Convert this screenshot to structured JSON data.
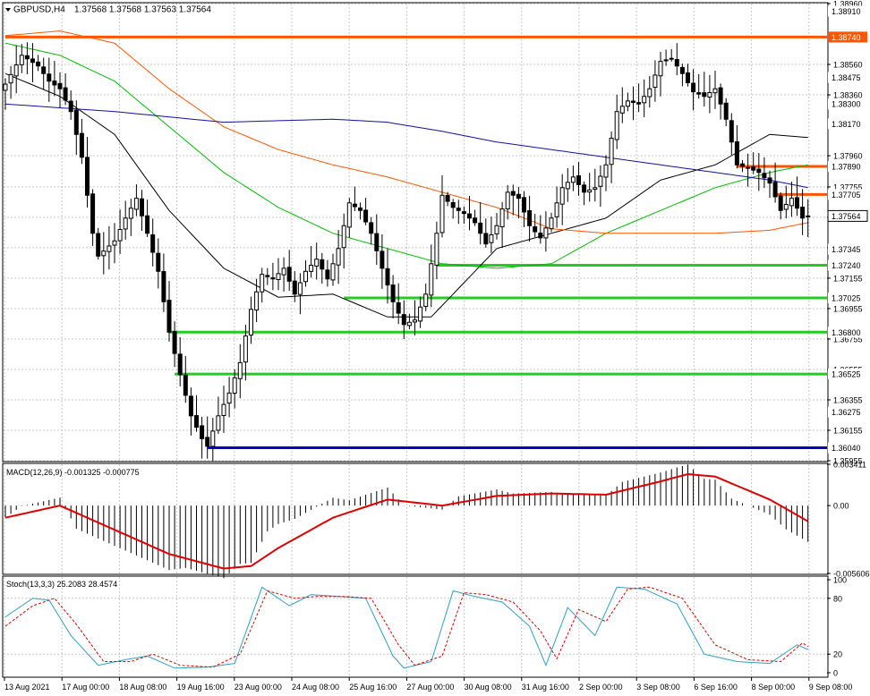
{
  "header": {
    "symbol_timeframe": "GBPUSD,H4",
    "ohlc": "1.37568 1.37568 1.37563 1.37564"
  },
  "colors": {
    "bull": "#ffffff",
    "bear": "#000000",
    "sma_black": "#000000",
    "sma_green": "#00bb00",
    "sma_orange": "#ff5500",
    "sma_blue": "#1010a0",
    "level_red": "#ff5500",
    "level_green": "#22cc22",
    "level_blue": "#0000cc",
    "macd_signal": "#dd0000",
    "stoch_main": "#30a0c0",
    "stoch_signal": "#dd0000"
  },
  "price_axis": {
    "ticks": [
      "1.38960",
      "1.38560",
      "1.38360",
      "1.37960",
      "1.37755",
      "1.37555",
      "1.37355",
      "1.37155",
      "1.36955",
      "1.36755",
      "1.36555",
      "1.36355",
      "1.36155",
      "1.35955"
    ]
  },
  "price_labels": [
    {
      "text": "1.38910",
      "kind": "line",
      "value": 1.3891
    },
    {
      "text": "1.38740",
      "kind": "red",
      "value": 1.3874
    },
    {
      "text": "1.38475",
      "kind": "line",
      "value": 1.38475
    },
    {
      "text": "1.38300",
      "kind": "line",
      "value": 1.383
    },
    {
      "text": "1.38170",
      "kind": "line",
      "value": 1.3817
    },
    {
      "text": "1.37890",
      "kind": "line",
      "value": 1.3789
    },
    {
      "text": "1.37705",
      "kind": "line",
      "value": 1.37705
    },
    {
      "text": "1.37564",
      "kind": "current",
      "value": 1.37564
    },
    {
      "text": "1.37345",
      "kind": "line",
      "value": 1.37345
    },
    {
      "text": "1.37240",
      "kind": "line",
      "value": 1.3724
    },
    {
      "text": "1.37025",
      "kind": "line",
      "value": 1.37025
    },
    {
      "text": "1.36800",
      "kind": "line",
      "value": 1.368
    },
    {
      "text": "1.36525",
      "kind": "line",
      "value": 1.36525
    },
    {
      "text": "1.36275",
      "kind": "line",
      "value": 1.36275
    },
    {
      "text": "1.36040",
      "kind": "line",
      "value": 1.3604
    }
  ],
  "levels": [
    {
      "price": 1.3874,
      "color": "#ff5500",
      "start_bar": 0
    },
    {
      "price": 1.3789,
      "color": "#ff5500",
      "start_bar": 134
    },
    {
      "price": 1.37705,
      "color": "#ff5500",
      "start_bar": 141
    },
    {
      "price": 1.3724,
      "color": "#22cc22",
      "start_bar": 79
    },
    {
      "price": 1.37025,
      "color": "#22cc22",
      "start_bar": 62
    },
    {
      "price": 1.368,
      "color": "#22cc22",
      "start_bar": 30
    },
    {
      "price": 1.36525,
      "color": "#22cc22",
      "start_bar": 31
    },
    {
      "price": 1.3604,
      "color": "#0000cc",
      "start_bar": 37
    }
  ],
  "time_axis": {
    "labels": [
      "13 Aug 2021",
      "17 Aug 00:00",
      "18 Aug 08:00",
      "19 Aug 16:00",
      "23 Aug 00:00",
      "24 Aug 08:00",
      "25 Aug 16:00",
      "27 Aug 00:00",
      "30 Aug 08:00",
      "31 Aug 16:00",
      "2 Sep 00:00",
      "3 Sep 08:00",
      "6 Sep 16:00",
      "8 Sep 00:00",
      "9 Sep 08:00"
    ]
  },
  "macd": {
    "label": "MACD(12,26,9) -0.001325 -0.000775",
    "ticks": [
      "0.003411",
      "0.00",
      "-0.005606"
    ]
  },
  "stoch": {
    "label": "Stoch(13,3,3) 25.2083 28.4574",
    "ticks": [
      "100",
      "80",
      "20",
      "0"
    ]
  },
  "chart_data": {
    "type": "candlestick",
    "symbol": "GBPUSD",
    "timeframe": "H4",
    "ylim": [
      1.35955,
      1.3896
    ],
    "key_prices": [
      1.3874,
      1.3789,
      1.37705,
      1.3724,
      1.37025,
      1.368,
      1.36525,
      1.3604
    ],
    "close_anchors": [
      [
        0,
        1.3843
      ],
      [
        3,
        1.3862
      ],
      [
        6,
        1.3855
      ],
      [
        8,
        1.3845
      ],
      [
        10,
        1.384
      ],
      [
        12,
        1.3825
      ],
      [
        14,
        1.3795
      ],
      [
        16,
        1.3745
      ],
      [
        17,
        1.373
      ],
      [
        20,
        1.374
      ],
      [
        22,
        1.3755
      ],
      [
        24,
        1.3768
      ],
      [
        26,
        1.3745
      ],
      [
        28,
        1.372
      ],
      [
        30,
        1.368
      ],
      [
        32,
        1.3652
      ],
      [
        34,
        1.3625
      ],
      [
        36,
        1.361
      ],
      [
        37,
        1.3605
      ],
      [
        39,
        1.3625
      ],
      [
        41,
        1.364
      ],
      [
        43,
        1.366
      ],
      [
        45,
        1.3695
      ],
      [
        47,
        1.3718
      ],
      [
        49,
        1.3715
      ],
      [
        51,
        1.3722
      ],
      [
        53,
        1.3705
      ],
      [
        55,
        1.372
      ],
      [
        57,
        1.3728
      ],
      [
        59,
        1.3715
      ],
      [
        61,
        1.3735
      ],
      [
        63,
        1.3765
      ],
      [
        65,
        1.376
      ],
      [
        67,
        1.3745
      ],
      [
        69,
        1.3722
      ],
      [
        71,
        1.37
      ],
      [
        73,
        1.3685
      ],
      [
        75,
        1.3688
      ],
      [
        77,
        1.3705
      ],
      [
        79,
        1.3745
      ],
      [
        80,
        1.377
      ],
      [
        82,
        1.3762
      ],
      [
        84,
        1.3758
      ],
      [
        86,
        1.3752
      ],
      [
        88,
        1.3738
      ],
      [
        90,
        1.375
      ],
      [
        92,
        1.3772
      ],
      [
        94,
        1.3768
      ],
      [
        96,
        1.375
      ],
      [
        98,
        1.3742
      ],
      [
        100,
        1.3755
      ],
      [
        102,
        1.3775
      ],
      [
        104,
        1.3782
      ],
      [
        106,
        1.3772
      ],
      [
        108,
        1.3775
      ],
      [
        110,
        1.379
      ],
      [
        112,
        1.3825
      ],
      [
        114,
        1.3832
      ],
      [
        116,
        1.383
      ],
      [
        118,
        1.384
      ],
      [
        120,
        1.3858
      ],
      [
        122,
        1.386
      ],
      [
        124,
        1.385
      ],
      [
        126,
        1.3838
      ],
      [
        128,
        1.3835
      ],
      [
        130,
        1.384
      ],
      [
        132,
        1.382
      ],
      [
        134,
        1.379
      ],
      [
        136,
        1.3788
      ],
      [
        138,
        1.3785
      ],
      [
        140,
        1.3778
      ],
      [
        142,
        1.376
      ],
      [
        144,
        1.3768
      ],
      [
        146,
        1.3755
      ],
      [
        147,
        1.37564
      ]
    ],
    "series": [
      {
        "period": "short",
        "color": "#000000",
        "anchors": [
          [
            0,
            1.385
          ],
          [
            10,
            1.3835
          ],
          [
            20,
            1.381
          ],
          [
            30,
            1.376
          ],
          [
            40,
            1.3722
          ],
          [
            50,
            1.3703
          ],
          [
            60,
            1.3705
          ],
          [
            70,
            1.369
          ],
          [
            78,
            1.369
          ],
          [
            90,
            1.3735
          ],
          [
            100,
            1.3745
          ],
          [
            110,
            1.3755
          ],
          [
            120,
            1.378
          ],
          [
            130,
            1.379
          ],
          [
            140,
            1.381
          ],
          [
            147,
            1.3808
          ]
        ]
      },
      {
        "period": "mid",
        "color": "#00bb00",
        "anchors": [
          [
            0,
            1.387
          ],
          [
            10,
            1.3862
          ],
          [
            20,
            1.3845
          ],
          [
            30,
            1.3815
          ],
          [
            40,
            1.3785
          ],
          [
            50,
            1.3762
          ],
          [
            60,
            1.3745
          ],
          [
            70,
            1.3735
          ],
          [
            80,
            1.3725
          ],
          [
            90,
            1.3722
          ],
          [
            100,
            1.3725
          ],
          [
            110,
            1.3745
          ],
          [
            120,
            1.376
          ],
          [
            130,
            1.3775
          ],
          [
            140,
            1.3785
          ],
          [
            147,
            1.379
          ]
        ]
      },
      {
        "period": "long",
        "color": "#ff5500",
        "anchors": [
          [
            0,
            1.3875
          ],
          [
            10,
            1.3878
          ],
          [
            20,
            1.387
          ],
          [
            30,
            1.384
          ],
          [
            40,
            1.3815
          ],
          [
            50,
            1.38
          ],
          [
            60,
            1.379
          ],
          [
            70,
            1.3782
          ],
          [
            80,
            1.3772
          ],
          [
            90,
            1.3762
          ],
          [
            100,
            1.3748
          ],
          [
            110,
            1.3745
          ],
          [
            120,
            1.3745
          ],
          [
            130,
            1.3745
          ],
          [
            140,
            1.3747
          ],
          [
            147,
            1.3752
          ]
        ]
      },
      {
        "period": "longest",
        "color": "#1010a0",
        "anchors": [
          [
            0,
            1.383
          ],
          [
            20,
            1.3825
          ],
          [
            40,
            1.3818
          ],
          [
            60,
            1.382
          ],
          [
            70,
            1.3818
          ],
          [
            80,
            1.3812
          ],
          [
            90,
            1.3805
          ],
          [
            100,
            1.38
          ],
          [
            110,
            1.3795
          ],
          [
            120,
            1.379
          ],
          [
            130,
            1.3785
          ],
          [
            140,
            1.378
          ],
          [
            147,
            1.3775
          ]
        ]
      }
    ],
    "macd_signal_anchors": [
      [
        0,
        -0.001
      ],
      [
        10,
        0.0
      ],
      [
        15,
        -0.001
      ],
      [
        20,
        -0.002
      ],
      [
        30,
        -0.004
      ],
      [
        40,
        -0.0052
      ],
      [
        45,
        -0.005
      ],
      [
        50,
        -0.0035
      ],
      [
        60,
        -0.001
      ],
      [
        70,
        0.0005
      ],
      [
        80,
        0.0
      ],
      [
        90,
        0.0008
      ],
      [
        100,
        0.001
      ],
      [
        110,
        0.0009
      ],
      [
        120,
        0.002
      ],
      [
        125,
        0.0026
      ],
      [
        130,
        0.0024
      ],
      [
        140,
        0.0005
      ],
      [
        147,
        -0.0013
      ]
    ],
    "stoch_main_anchors": [
      [
        0,
        60
      ],
      [
        5,
        80
      ],
      [
        8,
        78
      ],
      [
        12,
        40
      ],
      [
        17,
        8
      ],
      [
        22,
        14
      ],
      [
        26,
        18
      ],
      [
        31,
        5
      ],
      [
        37,
        6
      ],
      [
        42,
        10
      ],
      [
        47,
        92
      ],
      [
        52,
        72
      ],
      [
        56,
        84
      ],
      [
        61,
        82
      ],
      [
        66,
        80
      ],
      [
        71,
        18
      ],
      [
        73,
        5
      ],
      [
        78,
        12
      ],
      [
        82,
        88
      ],
      [
        86,
        82
      ],
      [
        91,
        76
      ],
      [
        96,
        50
      ],
      [
        99,
        8
      ],
      [
        103,
        70
      ],
      [
        108,
        40
      ],
      [
        112,
        92
      ],
      [
        117,
        90
      ],
      [
        123,
        74
      ],
      [
        128,
        20
      ],
      [
        134,
        12
      ],
      [
        140,
        10
      ],
      [
        145,
        30
      ],
      [
        147,
        25
      ]
    ],
    "stoch_signal_anchors": [
      [
        0,
        50
      ],
      [
        5,
        72
      ],
      [
        9,
        80
      ],
      [
        13,
        52
      ],
      [
        18,
        12
      ],
      [
        23,
        12
      ],
      [
        27,
        20
      ],
      [
        32,
        8
      ],
      [
        38,
        6
      ],
      [
        43,
        20
      ],
      [
        48,
        88
      ],
      [
        53,
        80
      ],
      [
        57,
        82
      ],
      [
        62,
        82
      ],
      [
        67,
        80
      ],
      [
        72,
        30
      ],
      [
        75,
        8
      ],
      [
        80,
        18
      ],
      [
        84,
        86
      ],
      [
        88,
        84
      ],
      [
        93,
        76
      ],
      [
        98,
        45
      ],
      [
        101,
        15
      ],
      [
        105,
        68
      ],
      [
        110,
        55
      ],
      [
        114,
        90
      ],
      [
        118,
        92
      ],
      [
        124,
        80
      ],
      [
        130,
        30
      ],
      [
        136,
        14
      ],
      [
        142,
        12
      ],
      [
        146,
        32
      ],
      [
        147,
        28
      ]
    ]
  }
}
